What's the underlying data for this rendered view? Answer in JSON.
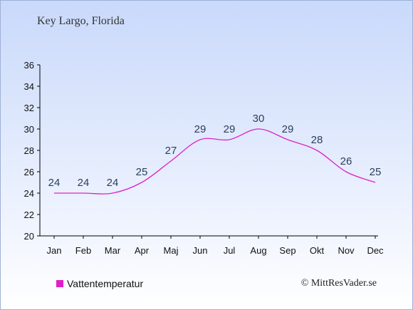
{
  "chart_data": {
    "type": "line",
    "title": "Key Largo, Florida",
    "categories": [
      "Jan",
      "Feb",
      "Mar",
      "Apr",
      "Maj",
      "Jun",
      "Jul",
      "Aug",
      "Sep",
      "Okt",
      "Nov",
      "Dec"
    ],
    "series": [
      {
        "name": "Vattentemperatur",
        "values": [
          24,
          24,
          24,
          25,
          27,
          29,
          29,
          30,
          29,
          28,
          26,
          25
        ],
        "color": "#e020c8"
      }
    ],
    "yticks": [
      20,
      22,
      24,
      26,
      28,
      30,
      32,
      34,
      36
    ],
    "ylim": [
      20,
      36
    ],
    "grid": false
  },
  "credit": "© MittResVader.se"
}
